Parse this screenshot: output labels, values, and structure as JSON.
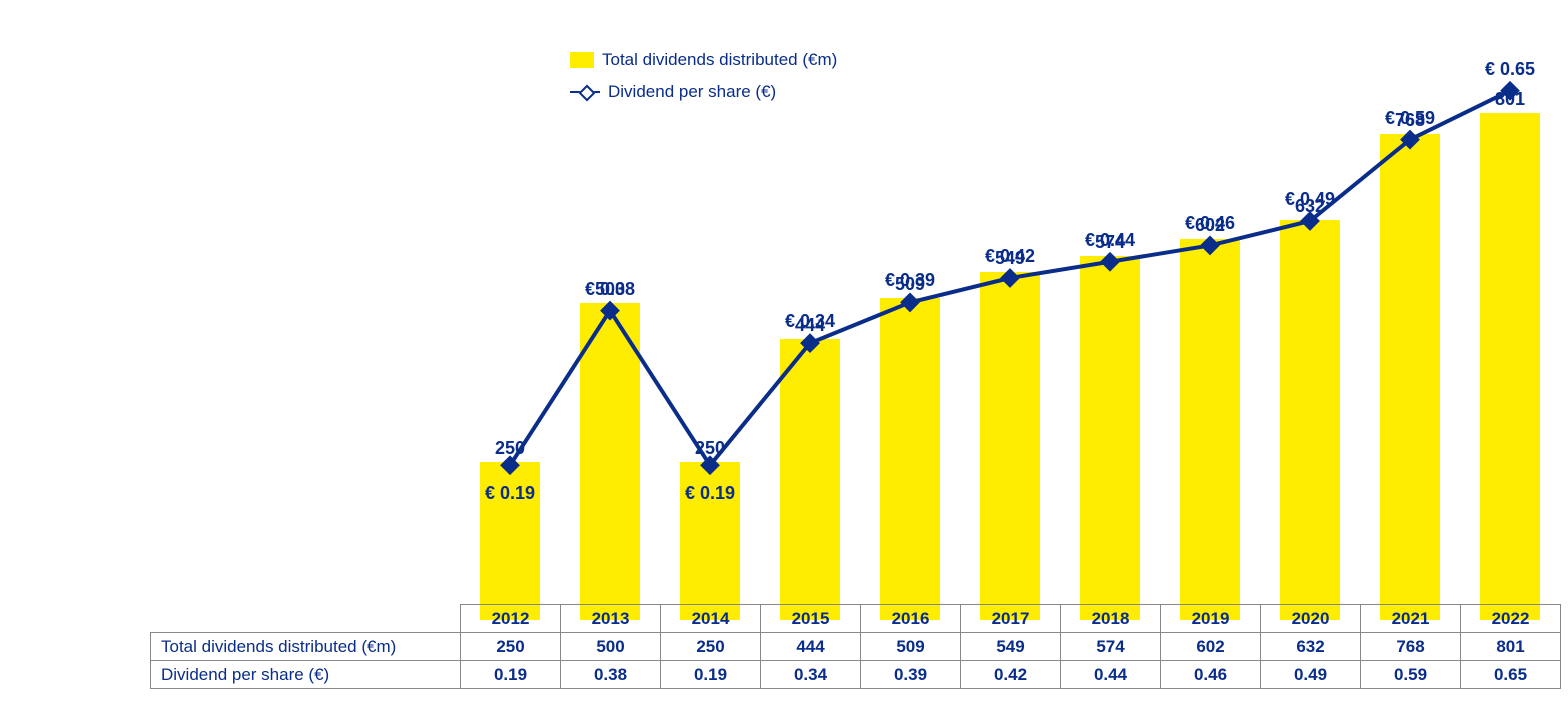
{
  "chart": {
    "type": "bar+line",
    "background_color": "#ffffff",
    "colors": {
      "bar": "#ffed00",
      "line": "#0a2d8a",
      "marker_fill": "#ffffff",
      "text": "#0a2d8a",
      "grid_border": "#888888"
    },
    "legend": {
      "bar_label": "Total dividends distributed (€m)",
      "line_label": "Dividend per share (€)",
      "position": "top-center",
      "fontsize": 17
    },
    "categories": [
      "2012",
      "2013",
      "2014",
      "2015",
      "2016",
      "2017",
      "2018",
      "2019",
      "2020",
      "2021",
      "2022"
    ],
    "bar_series": {
      "label": "Total dividends distributed (€m)",
      "values": [
        250,
        500,
        250,
        444,
        509,
        549,
        574,
        602,
        632,
        768,
        801
      ],
      "bar_width": 0.6,
      "y_max_display": 900,
      "label_fontsize": 18,
      "label_fontweight": "bold"
    },
    "line_series": {
      "label": "Dividend per share (€)",
      "values": [
        0.19,
        0.38,
        0.19,
        0.34,
        0.39,
        0.42,
        0.44,
        0.46,
        0.49,
        0.59,
        0.65
      ],
      "display_labels": [
        "€ 0.19",
        "€ 0.38",
        "€ 0.19",
        "€ 0.34",
        "€ 0.39",
        "€ 0.42",
        "€ 0.44",
        "€ 0.46",
        "€ 0.49",
        "€ 0.59",
        "€ 0.65"
      ],
      "y_max_display": 0.7,
      "marker": "diamond",
      "marker_size": 12,
      "line_width": 4,
      "label_fontsize": 18
    },
    "table_rows": [
      {
        "header": "Total dividends distributed (€m)",
        "values": [
          "250",
          "500",
          "250",
          "444",
          "509",
          "549",
          "574",
          "602",
          "632",
          "768",
          "801"
        ]
      },
      {
        "header": "Dividend per share (€)",
        "values": [
          "0.19",
          "0.38",
          "0.19",
          "0.34",
          "0.39",
          "0.42",
          "0.44",
          "0.46",
          "0.49",
          "0.59",
          "0.65"
        ]
      }
    ],
    "table_fontsize": 17
  }
}
